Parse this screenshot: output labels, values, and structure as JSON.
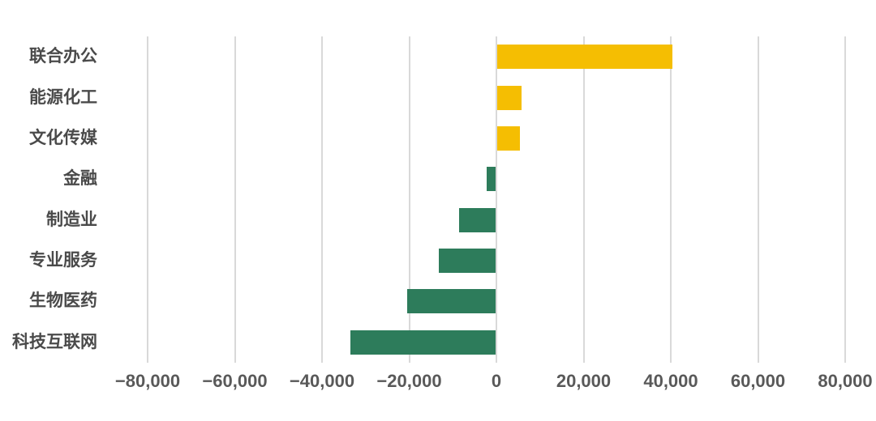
{
  "chart_data": {
    "type": "bar",
    "orientation": "horizontal",
    "title": "",
    "xlabel": "",
    "ylabel": "",
    "categories": [
      "联合办公",
      "能源化工",
      "文化传媒",
      "金融",
      "制造业",
      "专业服务",
      "生物医药",
      "科技互联网"
    ],
    "values": [
      40400,
      5800,
      5400,
      -2300,
      -8600,
      -13200,
      -20400,
      -33500
    ],
    "xlim": [
      -80000,
      80000
    ],
    "x_ticks": [
      -80000,
      -60000,
      -40000,
      -20000,
      0,
      20000,
      40000,
      60000,
      80000
    ],
    "x_tick_labels": [
      "−80,000",
      "−60,000",
      "−40,000",
      "−20,000",
      "0",
      "20,000",
      "40,000",
      "60,000",
      "80,000"
    ],
    "grid": "vertical-only",
    "legend": "none",
    "colors": {
      "positive": "#F5BE02",
      "negative": "#2D7C5B",
      "gridline": "#D9D9D9",
      "tick_label": "#595959",
      "category_label": "#4A4A4A",
      "background": "#FFFFFF"
    }
  }
}
